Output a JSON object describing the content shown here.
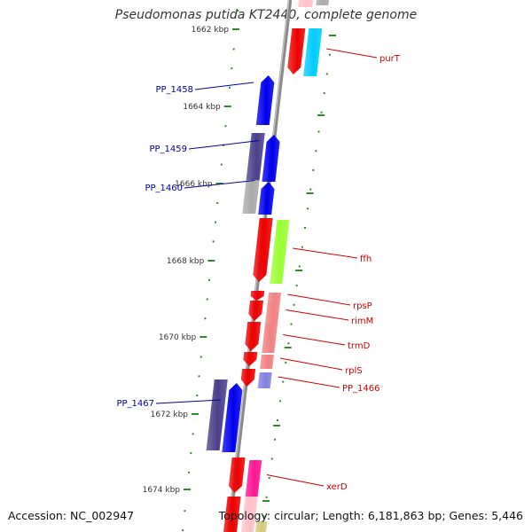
{
  "title": "Pseudomonas putida KT2440, complete genome",
  "accession": "Accession: NC_002947",
  "topology": "Topology: circular; Length: 6,181,863 bp; Genes: 5,446",
  "colors": {
    "backbone": "#8a8a8a",
    "tick": "#2e8b2e",
    "label_red": "#cc0000",
    "label_blue": "#000099"
  },
  "ticks": [
    {
      "label": "1662 kbp"
    },
    {
      "label": "1664 kbp"
    },
    {
      "label": "1666 kbp"
    },
    {
      "label": "1668 kbp"
    },
    {
      "label": "1670 kbp"
    },
    {
      "label": "1672 kbp"
    },
    {
      "label": "1674 kbp"
    }
  ],
  "genes": [
    {
      "name": "purT",
      "color": "#00ccff"
    },
    {
      "name": "PP_1458",
      "color": "#0000ee"
    },
    {
      "name": "PP_1459",
      "color": "#0000ee"
    },
    {
      "name": "PP_1460",
      "color": "#0000ee"
    },
    {
      "name": "ffh",
      "color": "#99ff33"
    },
    {
      "name": "rpsP",
      "color": "#f08080"
    },
    {
      "name": "rimM",
      "color": "#f08080"
    },
    {
      "name": "trmD",
      "color": "#f08080"
    },
    {
      "name": "rplS",
      "color": "#f08080"
    },
    {
      "name": "PP_1466",
      "color": "#8080e0"
    },
    {
      "name": "PP_1467",
      "color": "#0000ee"
    },
    {
      "name": "xerD",
      "color": "#ff1493"
    }
  ]
}
